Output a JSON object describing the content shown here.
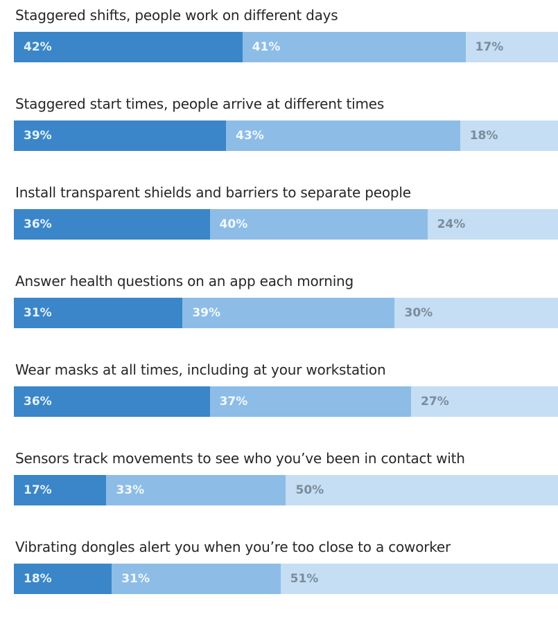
{
  "chart_data": {
    "type": "bar",
    "orientation": "horizontal",
    "stacked": true,
    "normalized": true,
    "title": "",
    "xlabel": "",
    "ylabel": "",
    "xlim": [
      0,
      100
    ],
    "grid": false,
    "legend": "none",
    "categories": [
      "Staggered shifts, people work on different days",
      "Staggered start times, people arrive at different times",
      "Install transparent shields and barriers to separate people",
      "Answer health questions on an app each morning",
      "Wear masks at all times, including at your workstation",
      "Sensors track movements to see who you’ve been in contact with",
      "Vibrating dongles alert you when you’re too close to a coworker"
    ],
    "series": [
      {
        "color": "#3a86c8",
        "label_color": "#e8f2fb",
        "values": [
          42,
          39,
          36,
          31,
          36,
          17,
          18
        ]
      },
      {
        "color": "#8dbde6",
        "label_color": "#f3f8fd",
        "values": [
          41,
          43,
          40,
          39,
          37,
          33,
          31
        ]
      },
      {
        "color": "#c5def3",
        "label_color": "#7a8c9c",
        "values": [
          17,
          18,
          24,
          30,
          27,
          50,
          51
        ]
      }
    ],
    "value_suffix": "%"
  }
}
